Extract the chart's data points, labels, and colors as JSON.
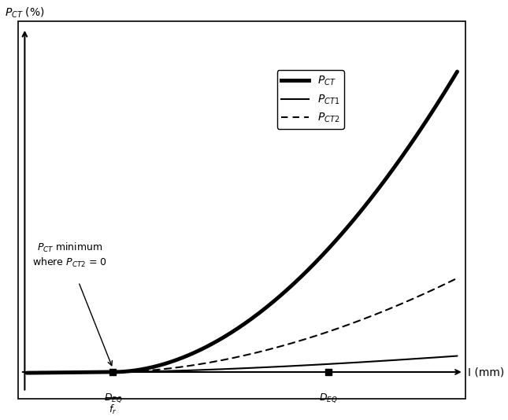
{
  "title": "",
  "ylabel": "P$_{CT}$ (%)",
  "xlabel": "I (mm)",
  "background_color": "#ffffff",
  "border_color": "#000000",
  "x_min": 0,
  "x_max": 10,
  "y_min": -0.5,
  "y_max": 10,
  "x_deq_fr": 2.0,
  "x_deq": 7.0,
  "annotation_text_line1": "P$_{CT}$ minimum",
  "annotation_text_line2": "where P$_{CT2}$ = 0",
  "legend_labels": [
    "P$_{CT}$",
    "P$_{CT1}$",
    "P$_{CT2}$"
  ]
}
